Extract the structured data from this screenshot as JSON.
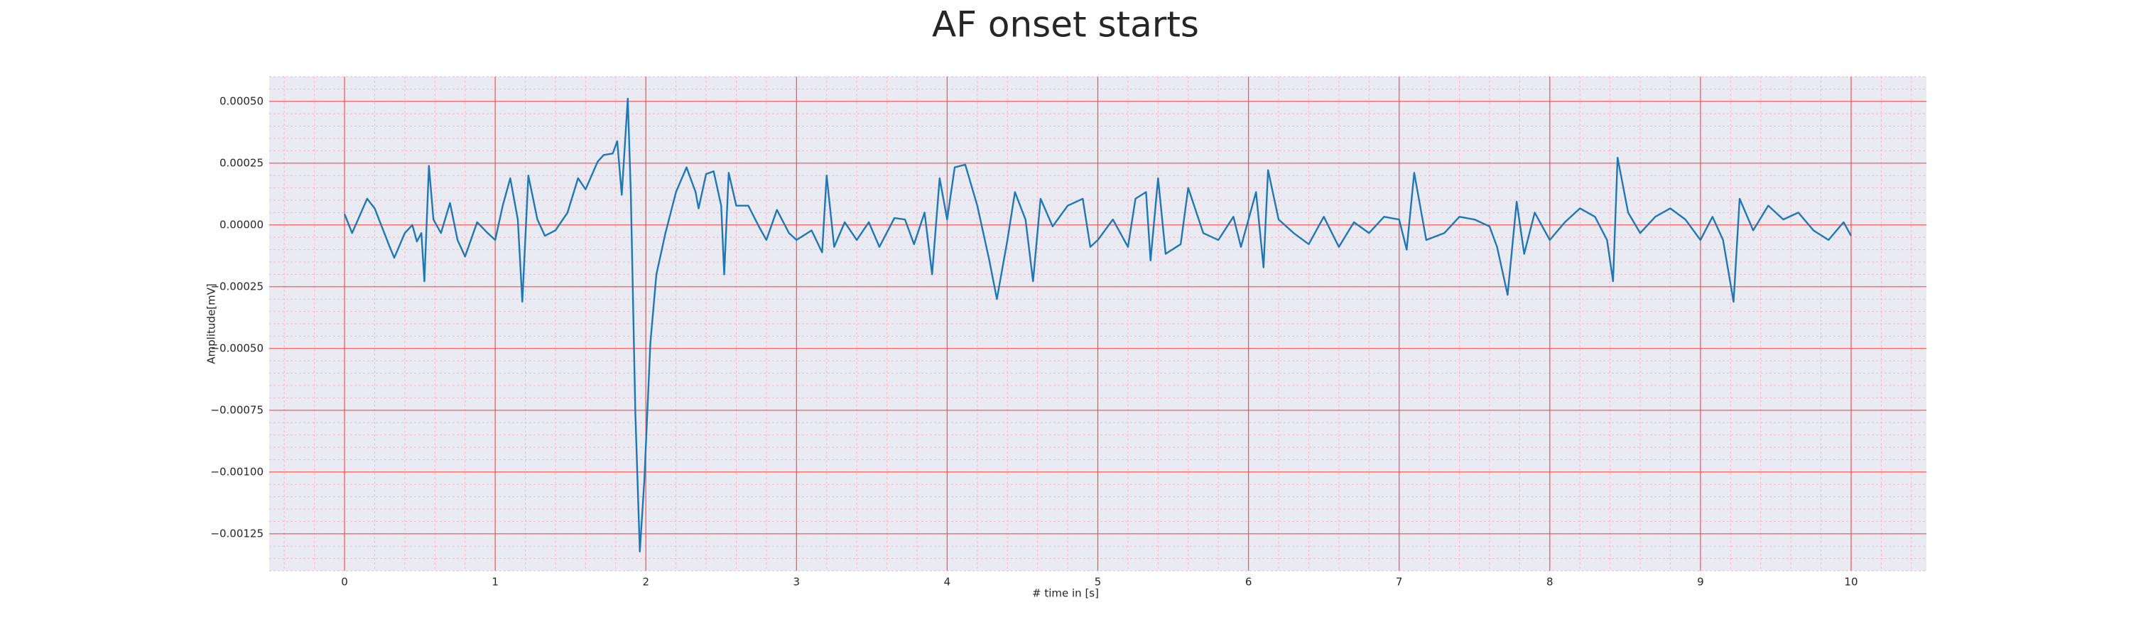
{
  "chart_data": {
    "type": "line",
    "title": "AF onset starts",
    "x_label": "# time in [s]",
    "y_label": "Amplitude[mV]",
    "xlim": [
      -0.5,
      10.5
    ],
    "ylim": [
      -0.0014,
      0.0006
    ],
    "xticks": [
      0,
      1,
      2,
      3,
      4,
      5,
      6,
      7,
      8,
      9,
      10
    ],
    "yticks": [
      {
        "value": 0.0005,
        "label": "0.00050"
      },
      {
        "value": 0.00025,
        "label": "0.00025"
      },
      {
        "value": 0,
        "label": "0.00000"
      },
      {
        "value": -0.00025,
        "label": "−0.00025"
      },
      {
        "value": -0.0005,
        "label": "−0.00050"
      },
      {
        "value": -0.00075,
        "label": "−0.00075"
      },
      {
        "value": -0.001,
        "label": "−0.00100"
      },
      {
        "value": -0.00125,
        "label": "−0.00125"
      }
    ],
    "grid": true,
    "grid_color": "#ff4d4d",
    "minor_grid": {
      "x": 0.2,
      "y": 5e-05,
      "color": "#f7b6c8"
    },
    "background": "#eaeaf2",
    "series": [
      {
        "color": "#1f77b4",
        "x": [
          0,
          0.05,
          0.15,
          0.2,
          0.3,
          0.33,
          0.4,
          0.45,
          0.48,
          0.51,
          0.53,
          0.56,
          0.59,
          0.64,
          0.7,
          0.75,
          0.8,
          0.88,
          0.95,
          1.0,
          1.05,
          1.1,
          1.15,
          1.18,
          1.22,
          1.28,
          1.33,
          1.4,
          1.48,
          1.55,
          1.6,
          1.68,
          1.72,
          1.78,
          1.81,
          1.84,
          1.88,
          1.9,
          1.93,
          1.96,
          1.99,
          2.03,
          2.07,
          2.13,
          2.2,
          2.27,
          2.33,
          2.35,
          2.4,
          2.45,
          2.5,
          2.52,
          2.55,
          2.6,
          2.68,
          2.75,
          2.8,
          2.87,
          2.95,
          3.0,
          3.1,
          3.17,
          3.2,
          3.25,
          3.32,
          3.4,
          3.48,
          3.55,
          3.65,
          3.72,
          3.78,
          3.85,
          3.9,
          3.95,
          4.0,
          4.05,
          4.12,
          4.2,
          4.28,
          4.33,
          4.4,
          4.45,
          4.52,
          4.57,
          4.62,
          4.7,
          4.8,
          4.9,
          4.95,
          5.0,
          5.1,
          5.2,
          5.25,
          5.32,
          5.35,
          5.4,
          5.45,
          5.55,
          5.6,
          5.7,
          5.8,
          5.9,
          5.95,
          6.05,
          6.1,
          6.13,
          6.2,
          6.3,
          6.4,
          6.5,
          6.6,
          6.7,
          6.8,
          6.9,
          7.0,
          7.05,
          7.1,
          7.18,
          7.3,
          7.4,
          7.5,
          7.6,
          7.65,
          7.72,
          7.78,
          7.83,
          7.9,
          8.0,
          8.1,
          8.2,
          8.3,
          8.38,
          8.42,
          8.45,
          8.52,
          8.6,
          8.7,
          8.8,
          8.9,
          9.0,
          9.08,
          9.15,
          9.22,
          9.26,
          9.35,
          9.45,
          9.55,
          9.65,
          9.75,
          9.85,
          9.95,
          10.0
        ],
        "values": [
          4.4e-05,
          -3.3e-05,
          0.000106,
          6.7e-05,
          -8.9e-05,
          -0.000133,
          -3.3e-05,
          0,
          -6.7e-05,
          -3.3e-05,
          -0.000228,
          0.000239,
          2.2e-05,
          -3.3e-05,
          8.9e-05,
          -6.1e-05,
          -0.000128,
          1.1e-05,
          -3.3e-05,
          -6.1e-05,
          7.8e-05,
          0.000189,
          2.2e-05,
          -0.000311,
          0.0002,
          2.2e-05,
          -4.4e-05,
          -2.2e-05,
          5e-05,
          0.000189,
          0.000144,
          0.000256,
          0.000283,
          0.000289,
          0.000339,
          0.000122,
          0.000511,
          0.000133,
          -0.000756,
          -0.001322,
          -0.001033,
          -0.000478,
          -0.0002,
          -3.3e-05,
          0.000133,
          0.000233,
          0.000133,
          6.7e-05,
          0.000206,
          0.000217,
          7.8e-05,
          -0.0002,
          0.000211,
          7.8e-05,
          7.8e-05,
          -6e-06,
          -6.1e-05,
          6.1e-05,
          -3.3e-05,
          -6.1e-05,
          -2.2e-05,
          -0.000111,
          0.0002,
          -8.9e-05,
          1.1e-05,
          -6.1e-05,
          1.1e-05,
          -8.9e-05,
          2.8e-05,
          2.2e-05,
          -7.8e-05,
          5e-05,
          -0.0002,
          0.000189,
          2.2e-05,
          0.000233,
          0.000244,
          7.8e-05,
          -0.000144,
          -0.0003,
          -6.1e-05,
          0.000133,
          2.2e-05,
          -0.000228,
          0.000106,
          -6e-06,
          7.8e-05,
          0.000106,
          -8.9e-05,
          -6.1e-05,
          2.2e-05,
          -8.9e-05,
          0.000106,
          0.000133,
          -0.000144,
          0.000189,
          -0.000117,
          -7.8e-05,
          0.00015,
          -3.3e-05,
          -6.1e-05,
          3.3e-05,
          -8.9e-05,
          0.000133,
          -0.000172,
          0.000222,
          2.2e-05,
          -3.3e-05,
          -7.8e-05,
          3.3e-05,
          -8.9e-05,
          1.1e-05,
          -3.3e-05,
          3.3e-05,
          2.2e-05,
          -0.0001,
          0.000211,
          -6.1e-05,
          -3.3e-05,
          3.3e-05,
          2.2e-05,
          -6e-06,
          -8.9e-05,
          -0.000283,
          9.4e-05,
          -0.000117,
          5e-05,
          -6.1e-05,
          1.1e-05,
          6.7e-05,
          3.3e-05,
          -6.1e-05,
          -0.000228,
          0.000272,
          5e-05,
          -3.3e-05,
          3.3e-05,
          6.7e-05,
          2.2e-05,
          -6.1e-05,
          3.3e-05,
          -6.1e-05,
          -0.000311,
          0.000106,
          -2.2e-05,
          7.8e-05,
          2.2e-05,
          5e-05,
          -2.2e-05,
          -6.1e-05,
          1.1e-05,
          -4.4e-05
        ]
      }
    ]
  }
}
